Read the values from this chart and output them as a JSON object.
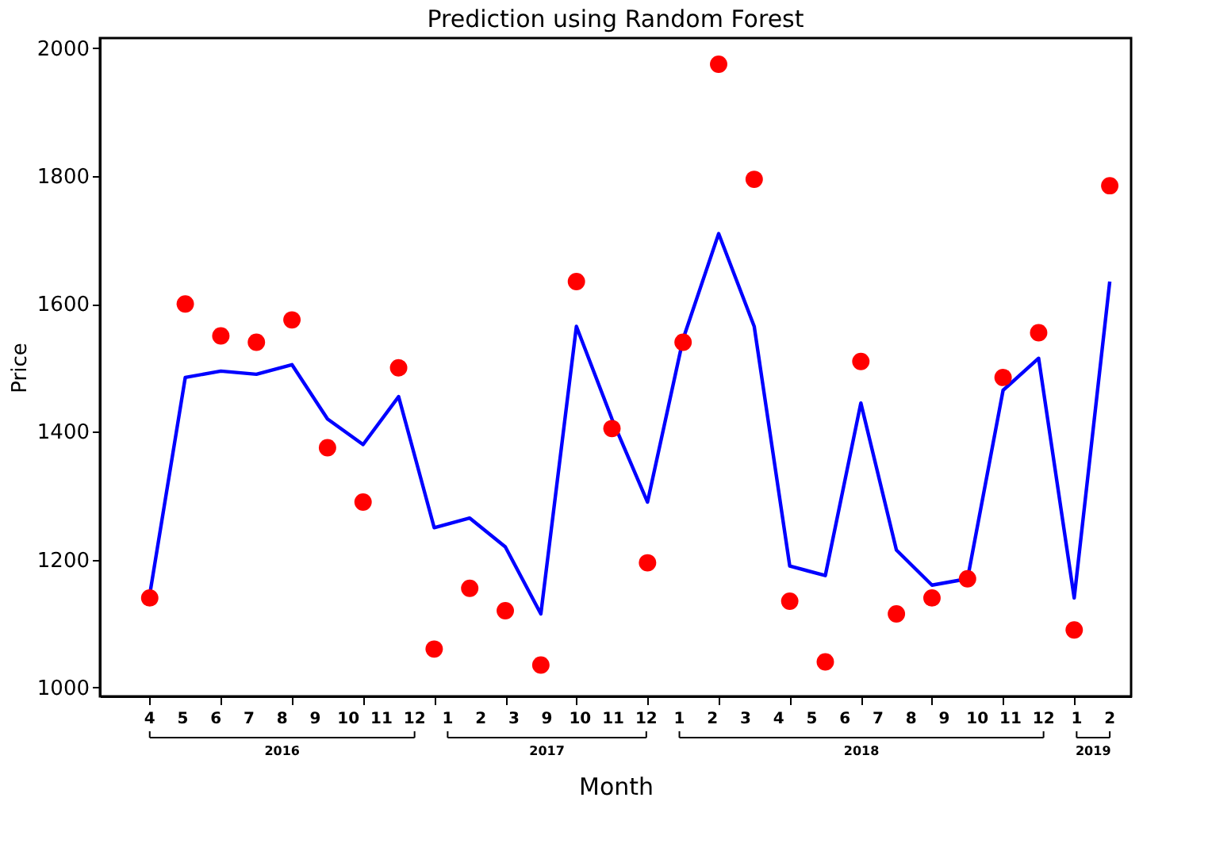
{
  "chart_data": {
    "type": "line",
    "title": "Prediction using Random Forest",
    "xlabel": "Month",
    "ylabel": "Price",
    "categories": [
      null,
      null,
      null,
      null,
      null,
      null,
      null,
      null,
      null,
      null,
      null,
      null,
      null,
      null,
      null,
      null,
      null,
      null,
      null,
      null,
      null,
      null,
      null,
      null,
      null,
      null,
      null,
      null
    ],
    "series": [
      {
        "color": "#0000ff",
        "values": [
          1145,
          1485,
          1495,
          1490,
          1505,
          1420,
          1380,
          1455,
          1250,
          1265,
          1220,
          1115,
          1565,
          1420,
          1290,
          1545,
          1710,
          1565,
          1190,
          1175,
          1445,
          1215,
          1160,
          1170,
          1465,
          1515,
          1140,
          1635
        ]
      },
      {
        "type": "scatter",
        "marker": "circle",
        "color": "#ff0000",
        "values": [
          1140,
          1600,
          1550,
          1540,
          1575,
          1375,
          1290,
          1500,
          1060,
          1155,
          1120,
          1035,
          1635,
          1405,
          1195,
          1540,
          1975,
          1795,
          1135,
          1040,
          1510,
          1115,
          1140,
          1170,
          1485,
          1555,
          1090,
          1785
        ]
      }
    ],
    "ylim": [
      986,
      2016
    ],
    "yticks": [
      1000,
      1200,
      1400,
      1600,
      1800,
      2000
    ],
    "grid": false,
    "annotations": [
      "4 5 6 7 8 9 10 11 12",
      "2016",
      "1 2 3 9 10 11 12",
      "2017",
      "1 2 3 4 5 6 7 8 9 10 11 12",
      "2018",
      "1 2",
      "2019"
    ]
  }
}
